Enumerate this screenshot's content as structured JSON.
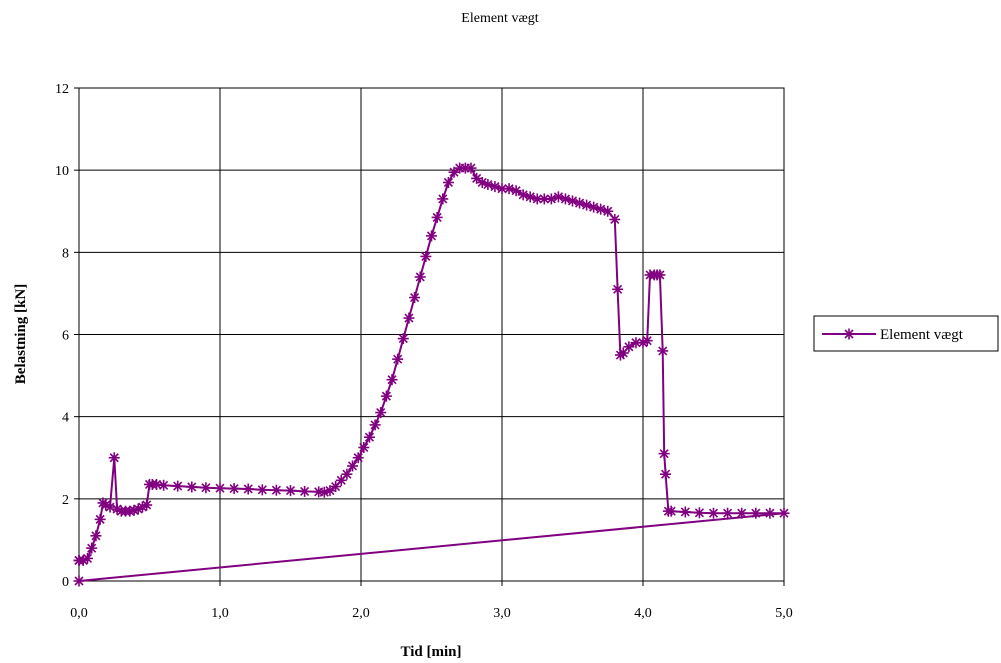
{
  "chart_data": {
    "type": "line",
    "title": "Element vægt",
    "xlabel": "Tid [min]",
    "ylabel": "Belastning [kN]",
    "xlim": [
      0,
      5
    ],
    "ylim": [
      0,
      12
    ],
    "x_ticks": [
      "0,0",
      "1,0",
      "2,0",
      "3,0",
      "4,0",
      "5,0"
    ],
    "y_ticks": [
      "0",
      "2",
      "4",
      "6",
      "8",
      "10",
      "12"
    ],
    "grid": true,
    "legend_position": "right",
    "marker": "asterisk",
    "series": [
      {
        "name": "Element vægt",
        "color": "#800080",
        "x": [
          0.0,
          0.0,
          0.03,
          0.06,
          0.09,
          0.12,
          0.15,
          0.17,
          0.19,
          0.22,
          0.25,
          0.27,
          0.3,
          0.33,
          0.36,
          0.39,
          0.42,
          0.45,
          0.48,
          0.5,
          0.52,
          0.55,
          0.6,
          0.7,
          0.8,
          0.9,
          1.0,
          1.1,
          1.2,
          1.3,
          1.4,
          1.5,
          1.6,
          1.7,
          1.74,
          1.78,
          1.82,
          1.86,
          1.9,
          1.94,
          1.98,
          2.02,
          2.06,
          2.1,
          2.14,
          2.18,
          2.22,
          2.26,
          2.3,
          2.34,
          2.38,
          2.42,
          2.46,
          2.5,
          2.54,
          2.58,
          2.62,
          2.66,
          2.7,
          2.74,
          2.78,
          2.82,
          2.86,
          2.9,
          2.95,
          3.0,
          3.05,
          3.1,
          3.15,
          3.2,
          3.25,
          3.3,
          3.35,
          3.4,
          3.45,
          3.5,
          3.55,
          3.6,
          3.65,
          3.7,
          3.75,
          3.8,
          3.82,
          3.84,
          3.86,
          3.9,
          3.95,
          4.0,
          4.03,
          4.05,
          4.08,
          4.1,
          4.12,
          4.14,
          4.15,
          4.16,
          4.18,
          4.2,
          4.3,
          4.4,
          4.5,
          4.6,
          4.7,
          4.8,
          4.9,
          5.0,
          0.0
        ],
        "y": [
          0.5,
          0.5,
          0.5,
          0.55,
          0.8,
          1.1,
          1.5,
          1.9,
          1.85,
          1.8,
          3.0,
          1.75,
          1.7,
          1.7,
          1.7,
          1.72,
          1.75,
          1.8,
          1.85,
          2.35,
          2.35,
          2.35,
          2.33,
          2.31,
          2.29,
          2.27,
          2.26,
          2.25,
          2.24,
          2.22,
          2.21,
          2.2,
          2.18,
          2.17,
          2.16,
          2.2,
          2.3,
          2.45,
          2.6,
          2.8,
          3.0,
          3.25,
          3.5,
          3.8,
          4.1,
          4.5,
          4.9,
          5.4,
          5.9,
          6.4,
          6.9,
          7.4,
          7.9,
          8.4,
          8.85,
          9.3,
          9.7,
          9.95,
          10.05,
          10.05,
          10.05,
          9.8,
          9.7,
          9.65,
          9.6,
          9.55,
          9.55,
          9.5,
          9.4,
          9.35,
          9.3,
          9.3,
          9.3,
          9.35,
          9.3,
          9.25,
          9.2,
          9.15,
          9.1,
          9.05,
          9.0,
          8.8,
          7.1,
          5.5,
          5.55,
          5.7,
          5.8,
          5.8,
          5.85,
          7.45,
          7.45,
          7.45,
          7.45,
          5.6,
          3.1,
          2.6,
          1.7,
          1.7,
          1.68,
          1.66,
          1.65,
          1.65,
          1.65,
          1.65,
          1.65,
          1.65,
          0.0
        ]
      }
    ]
  }
}
